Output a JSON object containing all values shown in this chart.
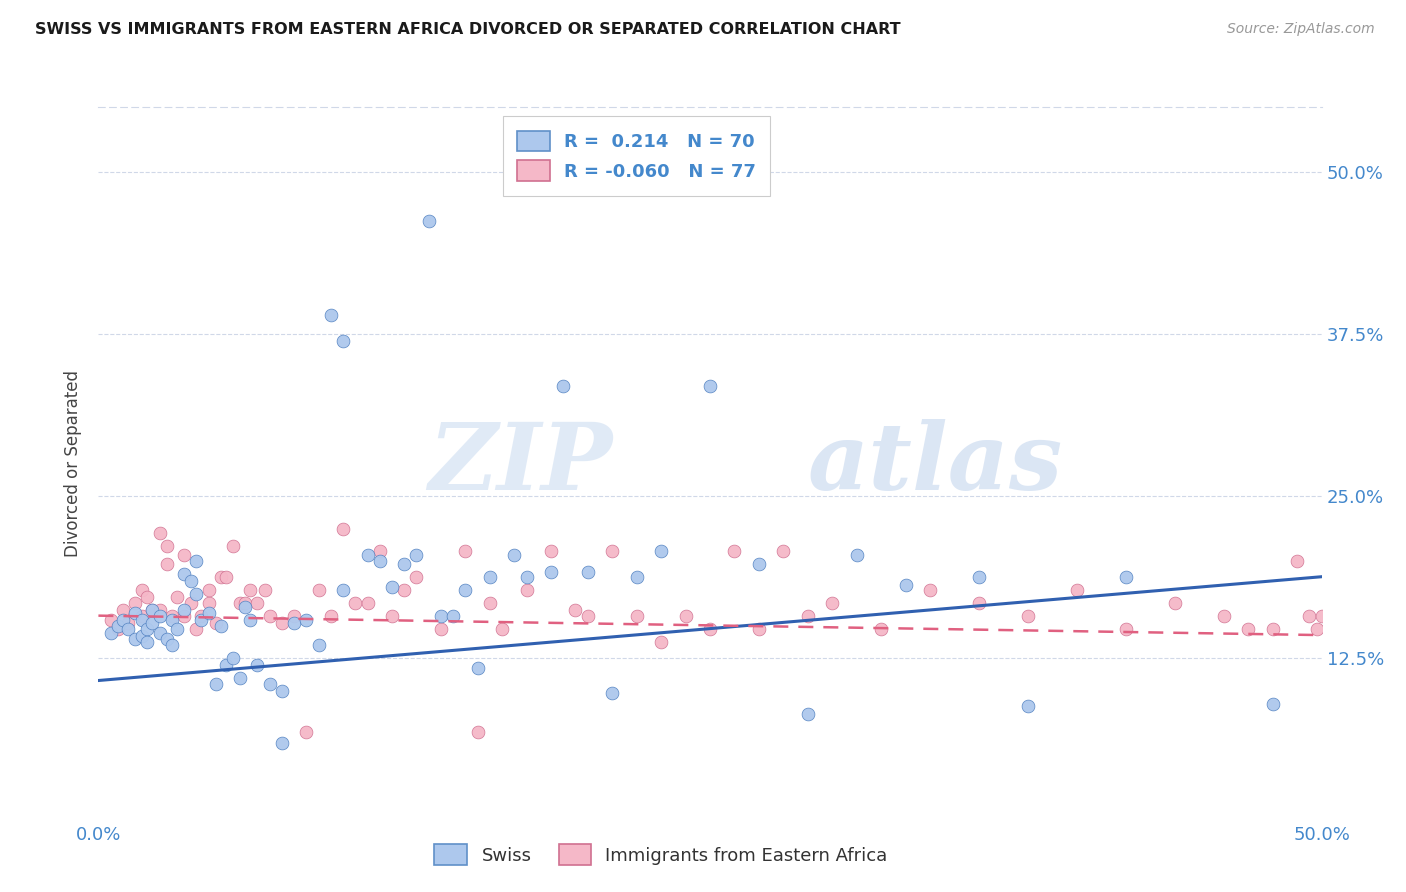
{
  "title": "SWISS VS IMMIGRANTS FROM EASTERN AFRICA DIVORCED OR SEPARATED CORRELATION CHART",
  "source": "Source: ZipAtlas.com",
  "ylabel": "Divorced or Separated",
  "ytick_labels": [
    "12.5%",
    "25.0%",
    "37.5%",
    "50.0%"
  ],
  "ytick_values": [
    0.125,
    0.25,
    0.375,
    0.5
  ],
  "xlim": [
    0.0,
    0.5
  ],
  "ylim": [
    0.0,
    0.55
  ],
  "legend_R_swiss": "R =  0.214",
  "legend_N_swiss": "N = 70",
  "legend_R_imm": "R = -0.060",
  "legend_N_imm": "N = 77",
  "color_swiss": "#adc8ed",
  "color_imm": "#f5b8c8",
  "color_swiss_line": "#3060b0",
  "color_imm_line": "#e06080",
  "color_tick": "#4488cc",
  "background": "#ffffff",
  "watermark_zip": "ZIP",
  "watermark_atlas": "atlas",
  "grid_color": "#d0d8e8",
  "swiss_x": [
    0.005,
    0.008,
    0.01,
    0.012,
    0.015,
    0.015,
    0.018,
    0.018,
    0.02,
    0.02,
    0.022,
    0.022,
    0.025,
    0.025,
    0.028,
    0.03,
    0.03,
    0.032,
    0.035,
    0.035,
    0.038,
    0.04,
    0.04,
    0.042,
    0.045,
    0.048,
    0.05,
    0.052,
    0.055,
    0.058,
    0.06,
    0.062,
    0.065,
    0.07,
    0.075,
    0.075,
    0.08,
    0.085,
    0.09,
    0.095,
    0.1,
    0.1,
    0.11,
    0.115,
    0.12,
    0.125,
    0.13,
    0.135,
    0.14,
    0.145,
    0.15,
    0.155,
    0.16,
    0.17,
    0.175,
    0.185,
    0.19,
    0.2,
    0.21,
    0.22,
    0.23,
    0.25,
    0.27,
    0.29,
    0.31,
    0.33,
    0.36,
    0.38,
    0.42,
    0.48
  ],
  "swiss_y": [
    0.145,
    0.15,
    0.155,
    0.148,
    0.14,
    0.16,
    0.142,
    0.155,
    0.148,
    0.138,
    0.152,
    0.162,
    0.145,
    0.158,
    0.14,
    0.135,
    0.155,
    0.148,
    0.162,
    0.19,
    0.185,
    0.2,
    0.175,
    0.155,
    0.16,
    0.105,
    0.15,
    0.12,
    0.125,
    0.11,
    0.165,
    0.155,
    0.12,
    0.105,
    0.1,
    0.06,
    0.152,
    0.155,
    0.135,
    0.39,
    0.37,
    0.178,
    0.205,
    0.2,
    0.18,
    0.198,
    0.205,
    0.462,
    0.158,
    0.158,
    0.178,
    0.118,
    0.188,
    0.205,
    0.188,
    0.192,
    0.335,
    0.192,
    0.098,
    0.188,
    0.208,
    0.335,
    0.198,
    0.082,
    0.205,
    0.182,
    0.188,
    0.088,
    0.188,
    0.09
  ],
  "imm_x": [
    0.005,
    0.008,
    0.01,
    0.012,
    0.015,
    0.018,
    0.018,
    0.02,
    0.022,
    0.025,
    0.025,
    0.028,
    0.028,
    0.03,
    0.032,
    0.035,
    0.035,
    0.038,
    0.04,
    0.042,
    0.045,
    0.045,
    0.048,
    0.05,
    0.052,
    0.055,
    0.058,
    0.06,
    0.062,
    0.065,
    0.068,
    0.07,
    0.075,
    0.08,
    0.085,
    0.09,
    0.095,
    0.1,
    0.105,
    0.11,
    0.115,
    0.12,
    0.125,
    0.13,
    0.14,
    0.15,
    0.155,
    0.16,
    0.165,
    0.175,
    0.185,
    0.195,
    0.2,
    0.21,
    0.22,
    0.23,
    0.24,
    0.25,
    0.26,
    0.27,
    0.28,
    0.29,
    0.3,
    0.32,
    0.34,
    0.36,
    0.38,
    0.4,
    0.42,
    0.44,
    0.46,
    0.47,
    0.48,
    0.49,
    0.495,
    0.498,
    0.5
  ],
  "imm_y": [
    0.155,
    0.148,
    0.162,
    0.152,
    0.168,
    0.178,
    0.158,
    0.172,
    0.162,
    0.162,
    0.222,
    0.198,
    0.212,
    0.158,
    0.172,
    0.205,
    0.158,
    0.168,
    0.148,
    0.158,
    0.168,
    0.178,
    0.152,
    0.188,
    0.188,
    0.212,
    0.168,
    0.168,
    0.178,
    0.168,
    0.178,
    0.158,
    0.152,
    0.158,
    0.068,
    0.178,
    0.158,
    0.225,
    0.168,
    0.168,
    0.208,
    0.158,
    0.178,
    0.188,
    0.148,
    0.208,
    0.068,
    0.168,
    0.148,
    0.178,
    0.208,
    0.162,
    0.158,
    0.208,
    0.158,
    0.138,
    0.158,
    0.148,
    0.208,
    0.148,
    0.208,
    0.158,
    0.168,
    0.148,
    0.178,
    0.168,
    0.158,
    0.178,
    0.148,
    0.168,
    0.158,
    0.148,
    0.148,
    0.2,
    0.158,
    0.148,
    0.158
  ],
  "swiss_trend_x": [
    0.0,
    0.5
  ],
  "swiss_trend_y": [
    0.108,
    0.188
  ],
  "imm_trend_x": [
    0.0,
    0.5
  ],
  "imm_trend_y": [
    0.158,
    0.143
  ]
}
